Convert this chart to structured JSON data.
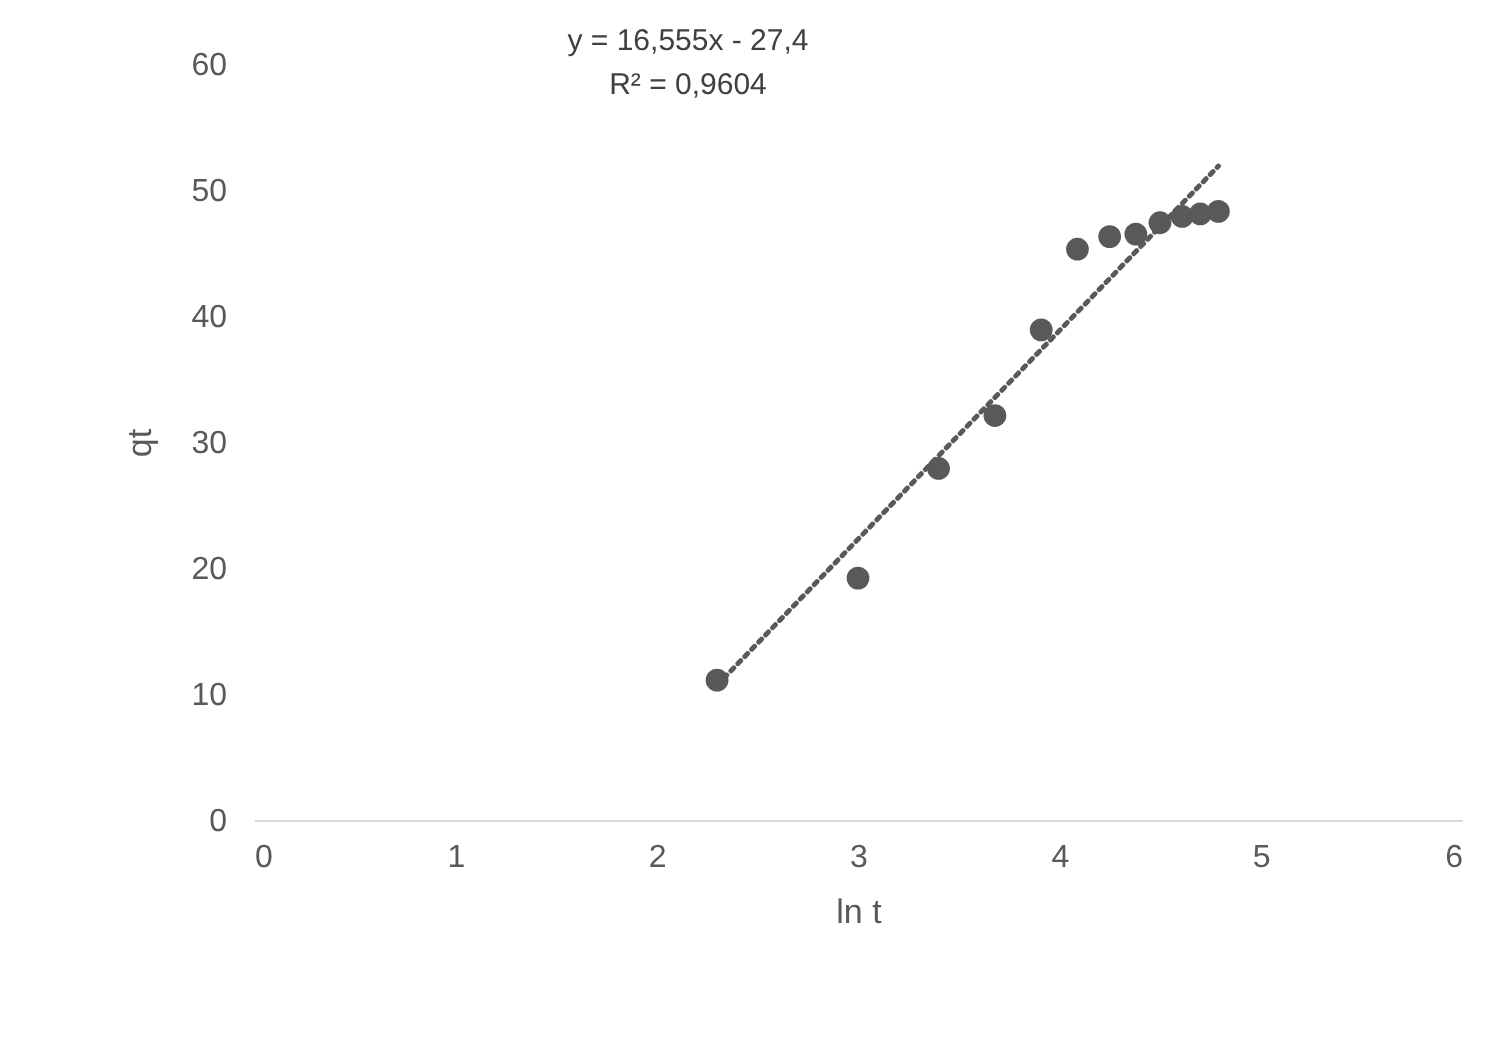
{
  "chart_data": {
    "type": "scatter",
    "xlabel": "ln t",
    "ylabel": "qt",
    "xlim": [
      0,
      6
    ],
    "xticks": [
      0,
      1,
      2,
      3,
      4,
      5,
      6
    ],
    "ylim": [
      0,
      60
    ],
    "yticks": [
      0,
      10,
      20,
      30,
      40,
      50,
      60
    ],
    "grid": false,
    "marker": "circle",
    "annotations": [
      "y = 16,555x - 27,4",
      "R² = 0,9604"
    ],
    "series": [
      {
        "color": "#595959",
        "x": [
          2.3,
          3.0,
          3.4,
          3.68,
          3.91,
          4.09,
          4.25,
          4.38,
          4.5,
          4.61,
          4.7,
          4.79
        ],
        "values": [
          11.1,
          19.2,
          27.9,
          32.1,
          38.9,
          45.3,
          46.3,
          46.5,
          47.4,
          47.9,
          48.1,
          48.3
        ]
      },
      {
        "type": "line",
        "color": "#595959",
        "line_style": "dotted",
        "marker": "none",
        "x": [
          2.3,
          4.79
        ],
        "values": [
          10.7,
          51.9
        ]
      }
    ]
  }
}
